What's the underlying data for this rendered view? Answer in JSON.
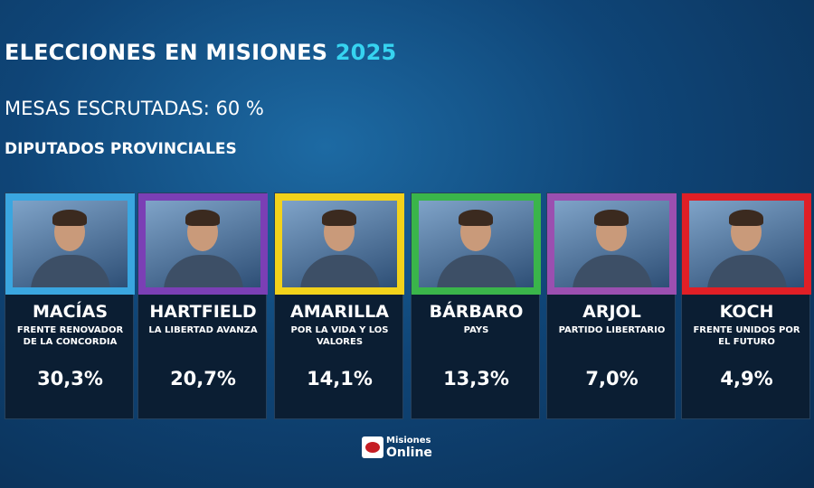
{
  "header": {
    "title": "ELECCIONES EN MISIONES",
    "year": "2025",
    "subtitle": "MESAS ESCRUTADAS: 60 %",
    "section": "DIPUTADOS PROVINCIALES"
  },
  "candidates": [
    {
      "name": "MACÍAS",
      "party": "FRENTE RENOVADOR DE LA CONCORDIA",
      "percent": "30,3%",
      "color": "#3aa6e0"
    },
    {
      "name": "HARTFIELD",
      "party": "LA LIBERTAD AVANZA",
      "percent": "20,7%",
      "color": "#7b3fb5"
    },
    {
      "name": "AMARILLA",
      "party": "POR LA VIDA Y LOS VALORES",
      "percent": "14,1%",
      "color": "#f2d21b"
    },
    {
      "name": "BÁRBARO",
      "party": "PAYS",
      "percent": "13,3%",
      "color": "#3ab54a"
    },
    {
      "name": "ARJOL",
      "party": "PARTIDO LIBERTARIO",
      "percent": "7,0%",
      "color": "#9b4fb0"
    },
    {
      "name": "KOCH",
      "party": "FRENTE UNIDOS POR EL FUTURO",
      "percent": "4,9%",
      "color": "#e01f26"
    }
  ],
  "logo": {
    "line1": "Misiones",
    "line2": "Online"
  }
}
